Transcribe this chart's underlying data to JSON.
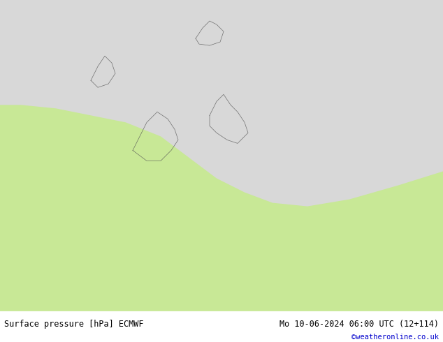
{
  "title_left": "Surface pressure [hPa] ECMWF",
  "title_right": "Mo 10-06-2024 06:00 UTC (12+114)",
  "credit": "©weatheronline.co.uk",
  "bg_color": "#c8e896",
  "sea_color": "#d8d8d8",
  "border_color": "#555555",
  "isobar_color": "#0000bb",
  "isobar_black": "#000000",
  "isobar_red": "#cc0000",
  "bottom_bar_color": "#ffffff",
  "bottom_text_color": "#000000",
  "credit_color": "#0000cc",
  "figsize": [
    6.34,
    4.9
  ],
  "dpi": 100
}
